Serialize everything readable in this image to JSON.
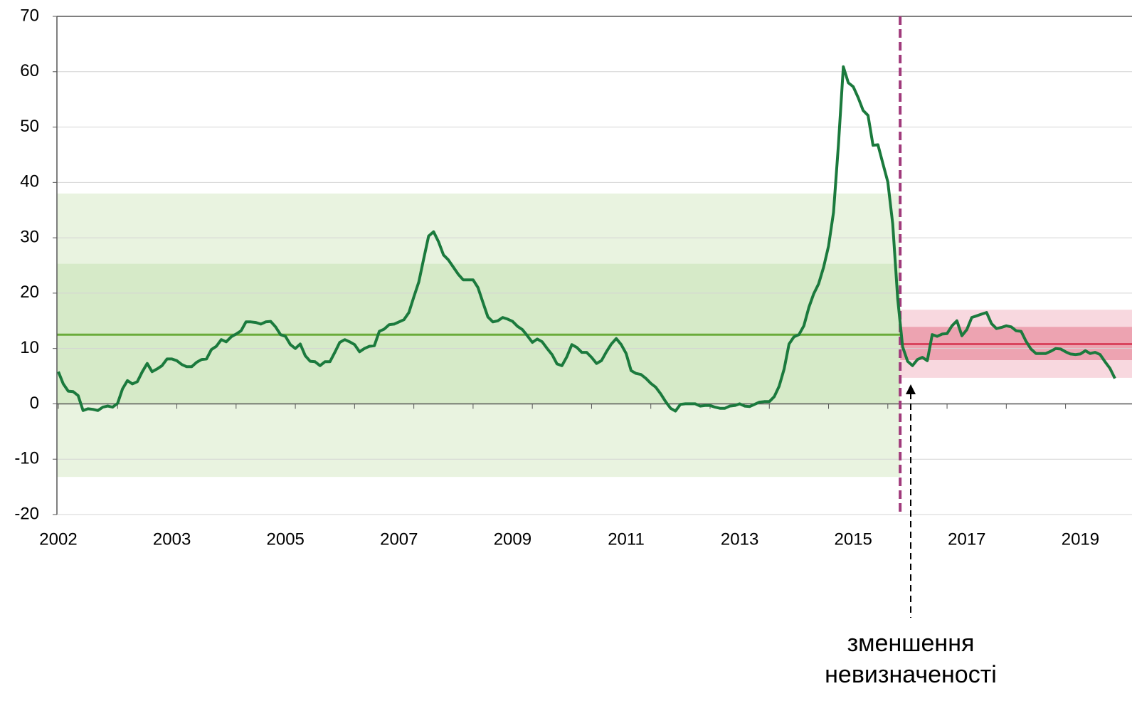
{
  "chart_data": {
    "type": "line",
    "categories": [
      "2002",
      null,
      null,
      null,
      null,
      null,
      null,
      null,
      null,
      null,
      null,
      null,
      null,
      null,
      null,
      null,
      null,
      null,
      null,
      null,
      null,
      null,
      null,
      "2003",
      null,
      null,
      null,
      null,
      null,
      null,
      null,
      null,
      null,
      null,
      null,
      null,
      null,
      null,
      null,
      null,
      null,
      null,
      null,
      null,
      null,
      null,
      "2005",
      null,
      null,
      null,
      null,
      null,
      null,
      null,
      null,
      null,
      null,
      null,
      null,
      null,
      null,
      null,
      null,
      null,
      null,
      null,
      null,
      null,
      null,
      "2007",
      null,
      null,
      null,
      null,
      null,
      null,
      null,
      null,
      null,
      null,
      null,
      null,
      null,
      null,
      null,
      null,
      null,
      null,
      null,
      null,
      null,
      null,
      "2009",
      null,
      null,
      null,
      null,
      null,
      null,
      null,
      null,
      null,
      null,
      null,
      null,
      null,
      null,
      null,
      null,
      null,
      null,
      null,
      null,
      null,
      null,
      "2011",
      null,
      null,
      null,
      null,
      null,
      null,
      null,
      null,
      null,
      null,
      null,
      null,
      null,
      null,
      null,
      null,
      null,
      null,
      null,
      null,
      null,
      null,
      "2013",
      null,
      null,
      null,
      null,
      null,
      null,
      null,
      null,
      null,
      null,
      null,
      null,
      null,
      null,
      null,
      null,
      null,
      null,
      null,
      null,
      null,
      null,
      "2015",
      null,
      null,
      null,
      null,
      null,
      null,
      null,
      null,
      null,
      null,
      null,
      null,
      null,
      null,
      null,
      null,
      null,
      null,
      null,
      null,
      null,
      null,
      "2017",
      null,
      null,
      null,
      null,
      null,
      null,
      null,
      null,
      null,
      null,
      null,
      null,
      null,
      null,
      null,
      null,
      null,
      null,
      null,
      null,
      null,
      null,
      "2019",
      null,
      null,
      null,
      null,
      null,
      null,
      null
    ],
    "series": [
      {
        "color": "#1b7a3d",
        "values": [
          5.8,
          3.6,
          2.3,
          2.2,
          1.5,
          -1.2,
          -0.9,
          -1.0,
          -1.2,
          -0.6,
          -0.4,
          -0.6,
          0.1,
          2.7,
          4.2,
          3.6,
          4.0,
          5.8,
          7.3,
          5.8,
          6.3,
          6.9,
          8.1,
          8.1,
          7.8,
          7.1,
          6.7,
          6.7,
          7.5,
          8.0,
          8.1,
          9.8,
          10.4,
          11.6,
          11.2,
          12.1,
          12.6,
          13.2,
          14.8,
          14.8,
          14.7,
          14.4,
          14.8,
          14.9,
          13.9,
          12.5,
          12.2,
          10.7,
          10.0,
          10.8,
          8.7,
          7.7,
          7.6,
          6.9,
          7.6,
          7.6,
          9.3,
          11.1,
          11.6,
          11.2,
          10.7,
          9.4,
          10.0,
          10.4,
          10.5,
          13.1,
          13.5,
          14.3,
          14.4,
          14.8,
          15.2,
          16.5,
          19.3,
          22.0,
          26.2,
          30.3,
          31.1,
          29.3,
          26.9,
          26.0,
          24.7,
          23.4,
          22.4,
          22.4,
          22.4,
          21.0,
          18.3,
          15.7,
          14.8,
          15.0,
          15.6,
          15.3,
          14.9,
          14.0,
          13.4,
          12.3,
          11.1,
          11.7,
          11.2,
          10.0,
          8.9,
          7.2,
          6.9,
          8.5,
          10.7,
          10.2,
          9.3,
          9.3,
          8.4,
          7.3,
          7.8,
          9.4,
          10.8,
          11.8,
          10.7,
          9.1,
          6.0,
          5.5,
          5.3,
          4.6,
          3.7,
          3.0,
          1.8,
          0.4,
          -0.8,
          -1.3,
          -0.1,
          0,
          0,
          0,
          -0.4,
          -0.3,
          -0.3,
          -0.6,
          -0.8,
          -0.8,
          -0.4,
          -0.3,
          0,
          -0.4,
          -0.5,
          -0.1,
          0.3,
          0.4,
          0.4,
          1.3,
          3.2,
          6.3,
          10.8,
          12.1,
          12.5,
          14.1,
          17.4,
          19.9,
          21.7,
          24.7,
          28.5,
          34.6,
          46.8,
          60.9,
          58.0,
          57.3,
          55.3,
          53.0,
          52.1,
          46.7,
          46.8,
          43.4,
          40.1,
          32.5,
          19.0,
          10.3,
          7.7,
          6.9,
          8.0,
          8.4,
          7.8,
          12.5,
          12.2,
          12.6,
          12.7,
          14.1,
          15.0,
          12.3,
          13.4,
          15.6,
          15.9,
          16.2,
          16.5,
          14.5,
          13.6,
          13.8,
          14.1,
          13.9,
          13.2,
          13.1,
          11.3,
          9.9,
          9.1,
          9.1,
          9.1,
          9.5,
          10.0,
          9.9,
          9.4,
          9.0,
          8.9,
          9.0,
          9.6,
          9.1,
          9.3,
          8.9,
          7.6,
          6.4,
          4.6
        ]
      }
    ],
    "ylim": [
      -20,
      70
    ],
    "yticks": [
      -20,
      -10,
      0,
      10,
      20,
      30,
      40,
      50,
      60,
      70
    ],
    "grid": true,
    "regimes": [
      {
        "span": [
          0,
          170
        ],
        "outer": [
          -13.2,
          38
        ],
        "inner": [
          0,
          25.3
        ],
        "mean": 12.5,
        "outer_color": "#e9f3e0",
        "inner_color": "#d6eac8",
        "mean_color": "#6aab3b"
      },
      {
        "span": [
          170,
          214
        ],
        "outer": [
          4.7,
          17
        ],
        "inner": [
          7.9,
          13.9
        ],
        "mean": 10.8,
        "outer_color": "#f8d8df",
        "inner_color": "#eda3b1",
        "mean_color": "#d9455f"
      }
    ],
    "break_index": 170.5,
    "break_color": "#a03a7b",
    "annotation": [
      "зменшення",
      "невизначеності"
    ]
  }
}
